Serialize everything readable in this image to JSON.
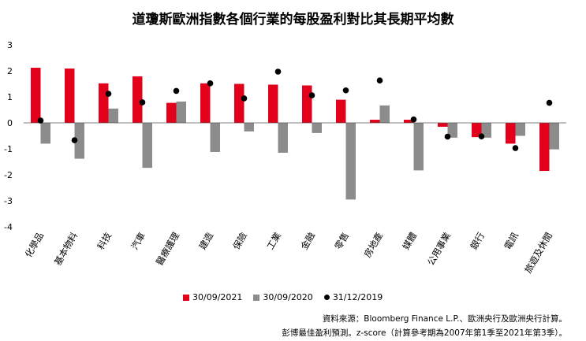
{
  "chart_data": {
    "type": "bar",
    "title": "道瓊斯歐洲指數各個行業的每股盈利對比其長期平均數",
    "categories": [
      "化學品",
      "基本物料",
      "科技",
      "汽車",
      "醫療護理",
      "建造",
      "保險",
      "工業",
      "金融",
      "零售",
      "房地產",
      "媒體",
      "公用事業",
      "銀行",
      "電訊",
      "旅遊及休閒"
    ],
    "series": [
      {
        "name": "30/09/2021",
        "kind": "bar",
        "color": "#e3001b",
        "values": [
          2.12,
          2.09,
          1.52,
          1.79,
          0.77,
          1.52,
          1.5,
          1.47,
          1.44,
          0.89,
          0.12,
          0.12,
          -0.15,
          -0.55,
          -0.8,
          -1.85
        ]
      },
      {
        "name": "30/09/2020",
        "kind": "bar",
        "color": "#8c8c8c",
        "values": [
          -0.8,
          -1.38,
          0.55,
          -1.73,
          0.82,
          -1.12,
          -0.33,
          -1.15,
          -0.39,
          -2.95,
          0.67,
          -1.83,
          -0.57,
          -0.57,
          -0.5,
          -1.02
        ]
      },
      {
        "name": "31/12/2019",
        "kind": "dot",
        "color": "#000000",
        "values": [
          0.09,
          -0.67,
          1.12,
          0.79,
          1.23,
          1.52,
          0.94,
          1.97,
          1.06,
          1.25,
          1.63,
          0.13,
          -0.53,
          -0.52,
          -0.97,
          0.77
        ]
      }
    ],
    "ylim": [
      -4,
      3
    ],
    "yticks": [
      3,
      2,
      1,
      0,
      -1,
      -2,
      -3,
      -4
    ],
    "xlabel": "",
    "ylabel": "",
    "grid": false,
    "legend_position": "bottom"
  },
  "footnotes": {
    "source": "資料來源：Bloomberg Finance L.P.、歐洲央行及歐洲央行計算。",
    "note": "彭博最佳盈利預測。z-score（計算參考期為2007年第1季至2021年第3季）。"
  }
}
